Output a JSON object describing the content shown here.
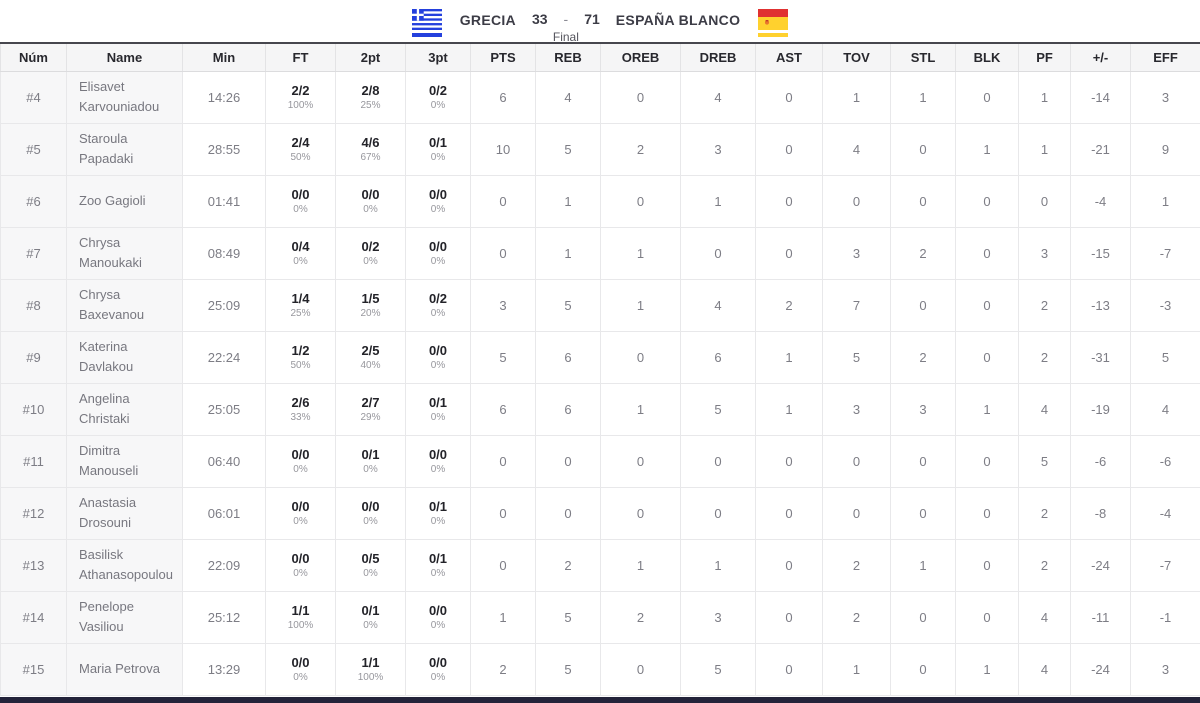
{
  "scoreboard": {
    "home_team": "GRECIA",
    "home_score": "33",
    "separator": "-",
    "away_score": "71",
    "away_team": "ESPAÑA BLANCO",
    "status": "Final",
    "home_flag": "greece-flag",
    "away_flag": "spain-flag"
  },
  "colors": {
    "greece_blue": "#2440dd",
    "spain_red": "#e03131",
    "spain_yellow": "#ffd12e",
    "header_top_border": "#46464e",
    "footer_bar": "#23233a",
    "row_alt_bg": "#f7f7f8"
  },
  "table": {
    "columns": [
      "Núm",
      "Name",
      "Min",
      "FT",
      "2pt",
      "3pt",
      "PTS",
      "REB",
      "OREB",
      "DREB",
      "AST",
      "TOV",
      "STL",
      "BLK",
      "PF",
      "+/-",
      "EFF"
    ],
    "rows": [
      {
        "num": "#4",
        "name": "Elisavet Karvouniadou",
        "min": "14:26",
        "ft": "2/2",
        "ft_pct": "100%",
        "p2": "2/8",
        "p2_pct": "25%",
        "p3": "0/2",
        "p3_pct": "0%",
        "pts": "6",
        "reb": "4",
        "oreb": "0",
        "dreb": "4",
        "ast": "0",
        "tov": "1",
        "stl": "1",
        "blk": "0",
        "pf": "1",
        "pm": "-14",
        "eff": "3"
      },
      {
        "num": "#5",
        "name": "Staroula Papadaki",
        "min": "28:55",
        "ft": "2/4",
        "ft_pct": "50%",
        "p2": "4/6",
        "p2_pct": "67%",
        "p3": "0/1",
        "p3_pct": "0%",
        "pts": "10",
        "reb": "5",
        "oreb": "2",
        "dreb": "3",
        "ast": "0",
        "tov": "4",
        "stl": "0",
        "blk": "1",
        "pf": "1",
        "pm": "-21",
        "eff": "9"
      },
      {
        "num": "#6",
        "name": "Zoo Gagioli",
        "min": "01:41",
        "ft": "0/0",
        "ft_pct": "0%",
        "p2": "0/0",
        "p2_pct": "0%",
        "p3": "0/0",
        "p3_pct": "0%",
        "pts": "0",
        "reb": "1",
        "oreb": "0",
        "dreb": "1",
        "ast": "0",
        "tov": "0",
        "stl": "0",
        "blk": "0",
        "pf": "0",
        "pm": "-4",
        "eff": "1"
      },
      {
        "num": "#7",
        "name": "Chrysa Manoukaki",
        "min": "08:49",
        "ft": "0/4",
        "ft_pct": "0%",
        "p2": "0/2",
        "p2_pct": "0%",
        "p3": "0/0",
        "p3_pct": "0%",
        "pts": "0",
        "reb": "1",
        "oreb": "1",
        "dreb": "0",
        "ast": "0",
        "tov": "3",
        "stl": "2",
        "blk": "0",
        "pf": "3",
        "pm": "-15",
        "eff": "-7"
      },
      {
        "num": "#8",
        "name": "Chrysa Baxevanou",
        "min": "25:09",
        "ft": "1/4",
        "ft_pct": "25%",
        "p2": "1/5",
        "p2_pct": "20%",
        "p3": "0/2",
        "p3_pct": "0%",
        "pts": "3",
        "reb": "5",
        "oreb": "1",
        "dreb": "4",
        "ast": "2",
        "tov": "7",
        "stl": "0",
        "blk": "0",
        "pf": "2",
        "pm": "-13",
        "eff": "-3"
      },
      {
        "num": "#9",
        "name": "Katerina Davlakou",
        "min": "22:24",
        "ft": "1/2",
        "ft_pct": "50%",
        "p2": "2/5",
        "p2_pct": "40%",
        "p3": "0/0",
        "p3_pct": "0%",
        "pts": "5",
        "reb": "6",
        "oreb": "0",
        "dreb": "6",
        "ast": "1",
        "tov": "5",
        "stl": "2",
        "blk": "0",
        "pf": "2",
        "pm": "-31",
        "eff": "5"
      },
      {
        "num": "#10",
        "name": "Angelina Christaki",
        "min": "25:05",
        "ft": "2/6",
        "ft_pct": "33%",
        "p2": "2/7",
        "p2_pct": "29%",
        "p3": "0/1",
        "p3_pct": "0%",
        "pts": "6",
        "reb": "6",
        "oreb": "1",
        "dreb": "5",
        "ast": "1",
        "tov": "3",
        "stl": "3",
        "blk": "1",
        "pf": "4",
        "pm": "-19",
        "eff": "4"
      },
      {
        "num": "#11",
        "name": "Dimitra Manouseli",
        "min": "06:40",
        "ft": "0/0",
        "ft_pct": "0%",
        "p2": "0/1",
        "p2_pct": "0%",
        "p3": "0/0",
        "p3_pct": "0%",
        "pts": "0",
        "reb": "0",
        "oreb": "0",
        "dreb": "0",
        "ast": "0",
        "tov": "0",
        "stl": "0",
        "blk": "0",
        "pf": "5",
        "pm": "-6",
        "eff": "-6"
      },
      {
        "num": "#12",
        "name": "Anastasia Drosouni",
        "min": "06:01",
        "ft": "0/0",
        "ft_pct": "0%",
        "p2": "0/0",
        "p2_pct": "0%",
        "p3": "0/1",
        "p3_pct": "0%",
        "pts": "0",
        "reb": "0",
        "oreb": "0",
        "dreb": "0",
        "ast": "0",
        "tov": "0",
        "stl": "0",
        "blk": "0",
        "pf": "2",
        "pm": "-8",
        "eff": "-4"
      },
      {
        "num": "#13",
        "name": "Basilisk Athanasopoulou",
        "min": "22:09",
        "ft": "0/0",
        "ft_pct": "0%",
        "p2": "0/5",
        "p2_pct": "0%",
        "p3": "0/1",
        "p3_pct": "0%",
        "pts": "0",
        "reb": "2",
        "oreb": "1",
        "dreb": "1",
        "ast": "0",
        "tov": "2",
        "stl": "1",
        "blk": "0",
        "pf": "2",
        "pm": "-24",
        "eff": "-7"
      },
      {
        "num": "#14",
        "name": "Penelope Vasiliou",
        "min": "25:12",
        "ft": "1/1",
        "ft_pct": "100%",
        "p2": "0/1",
        "p2_pct": "0%",
        "p3": "0/0",
        "p3_pct": "0%",
        "pts": "1",
        "reb": "5",
        "oreb": "2",
        "dreb": "3",
        "ast": "0",
        "tov": "2",
        "stl": "0",
        "blk": "0",
        "pf": "4",
        "pm": "-11",
        "eff": "-1"
      },
      {
        "num": "#15",
        "name": "Maria Petrova",
        "min": "13:29",
        "ft": "0/0",
        "ft_pct": "0%",
        "p2": "1/1",
        "p2_pct": "100%",
        "p3": "0/0",
        "p3_pct": "0%",
        "pts": "2",
        "reb": "5",
        "oreb": "0",
        "dreb": "5",
        "ast": "0",
        "tov": "1",
        "stl": "0",
        "blk": "1",
        "pf": "4",
        "pm": "-24",
        "eff": "3"
      }
    ]
  }
}
